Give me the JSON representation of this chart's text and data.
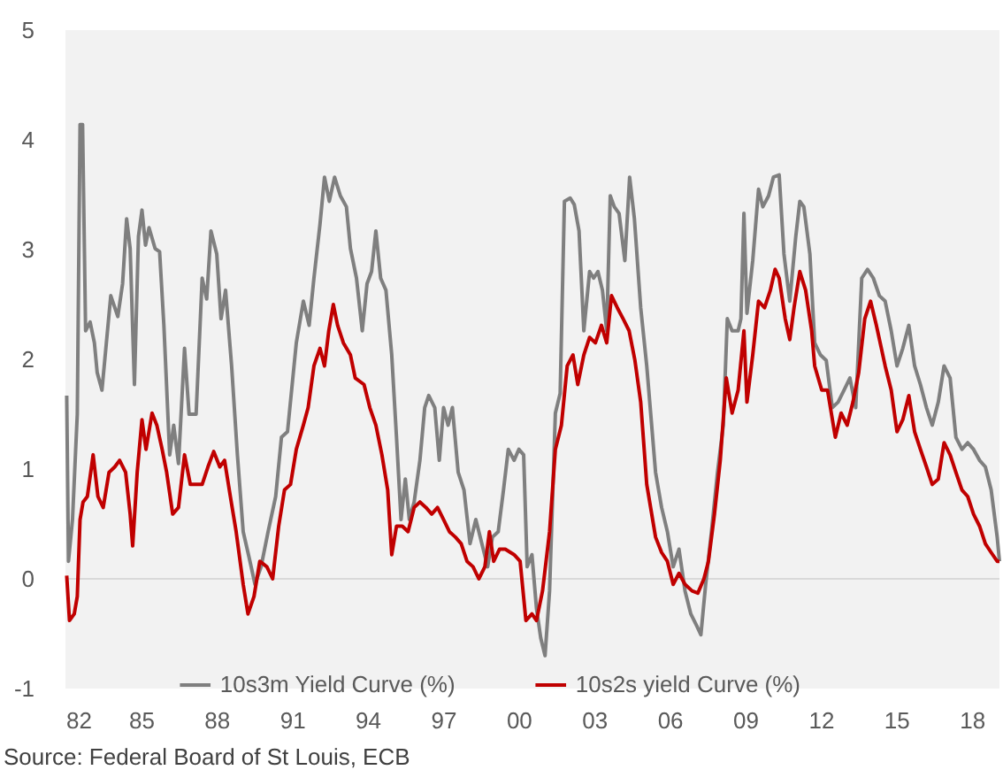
{
  "chart_data": {
    "type": "line",
    "xlim": [
      1982,
      2019.1
    ],
    "ylim": [
      -1,
      5
    ],
    "xticks": [
      {
        "value": 1982,
        "label": "82"
      },
      {
        "value": 1985,
        "label": "85"
      },
      {
        "value": 1988,
        "label": "88"
      },
      {
        "value": 1991,
        "label": "91"
      },
      {
        "value": 1994,
        "label": "94"
      },
      {
        "value": 1997,
        "label": "97"
      },
      {
        "value": 2000,
        "label": "00"
      },
      {
        "value": 2003,
        "label": "03"
      },
      {
        "value": 2006,
        "label": "06"
      },
      {
        "value": 2009,
        "label": "09"
      },
      {
        "value": 2012,
        "label": "12"
      },
      {
        "value": 2015,
        "label": "15"
      },
      {
        "value": 2018,
        "label": "18"
      }
    ],
    "yticks": [
      -1,
      0,
      1,
      2,
      3,
      4,
      5
    ],
    "grid": false,
    "legend": "bottom",
    "marker": "none",
    "line_style": "solid",
    "ref_lines": [
      {
        "axis": "y",
        "value": 0,
        "color": "#d9d9d9"
      }
    ],
    "annotations": [
      "Source: Federal Board of St Louis, ECB"
    ],
    "series": [
      {
        "name": "10s3m Yield Curve (%)",
        "color": "#7f7f7f",
        "x": [
          1982.05,
          1982.12,
          1982.28,
          1982.47,
          1982.58,
          1982.68,
          1982.8,
          1982.98,
          1983.15,
          1983.26,
          1983.45,
          1983.8,
          1984.08,
          1984.27,
          1984.43,
          1984.57,
          1984.74,
          1984.9,
          1985.04,
          1985.18,
          1985.32,
          1985.56,
          1985.74,
          1985.91,
          1986.14,
          1986.3,
          1986.49,
          1986.73,
          1986.91,
          1987.19,
          1987.43,
          1987.61,
          1987.78,
          1988.01,
          1988.18,
          1988.36,
          1988.6,
          1988.83,
          1989.06,
          1989.3,
          1989.53,
          1989.77,
          1990.05,
          1990.35,
          1990.58,
          1990.82,
          1991.17,
          1991.45,
          1991.68,
          1991.87,
          1992.11,
          1992.29,
          1992.48,
          1992.69,
          1992.92,
          1993.16,
          1993.32,
          1993.56,
          1993.79,
          1993.98,
          1994.16,
          1994.33,
          1994.52,
          1994.73,
          1994.96,
          1995.15,
          1995.33,
          1995.5,
          1995.66,
          1995.85,
          1996.08,
          1996.27,
          1996.43,
          1996.67,
          1996.85,
          1997.02,
          1997.2,
          1997.37,
          1997.6,
          1997.83,
          1998.07,
          1998.3,
          1998.54,
          1998.77,
          1998.96,
          1999.19,
          1999.4,
          1999.59,
          1999.82,
          2000.01,
          2000.2,
          2000.34,
          2000.53,
          2000.71,
          2000.88,
          2001.05,
          2001.23,
          2001.46,
          2001.65,
          2001.82,
          2002.05,
          2002.21,
          2002.4,
          2002.59,
          2002.82,
          2002.98,
          2003.15,
          2003.33,
          2003.5,
          2003.64,
          2003.8,
          2003.99,
          2004.22,
          2004.41,
          2004.6,
          2004.85,
          2005.09,
          2005.44,
          2005.68,
          2005.91,
          2006.14,
          2006.37,
          2006.61,
          2006.84,
          2007.08,
          2007.24,
          2007.43,
          2007.66,
          2007.9,
          2008.13,
          2008.29,
          2008.48,
          2008.72,
          2008.83,
          2008.95,
          2009.07,
          2009.3,
          2009.53,
          2009.7,
          2009.93,
          2010.12,
          2010.35,
          2010.54,
          2010.77,
          2011.01,
          2011.17,
          2011.33,
          2011.57,
          2011.76,
          2011.99,
          2012.22,
          2012.46,
          2012.69,
          2012.93,
          2013.16,
          2013.39,
          2013.63,
          2013.86,
          2014.09,
          2014.33,
          2014.56,
          2014.8,
          2015.03,
          2015.26,
          2015.5,
          2015.73,
          2015.96,
          2016.2,
          2016.43,
          2016.67,
          2016.9,
          2017.14,
          2017.37,
          2017.61,
          2017.84,
          2018.07,
          2018.31,
          2018.54,
          2018.77,
          2019.01,
          2019.1
        ],
        "values": [
          1.67,
          0.16,
          0.54,
          1.5,
          4.14,
          4.14,
          2.26,
          2.34,
          2.15,
          1.88,
          1.72,
          2.58,
          2.39,
          2.69,
          3.28,
          3.01,
          1.77,
          3.12,
          3.36,
          3.04,
          3.2,
          3.01,
          2.98,
          2.31,
          1.13,
          1.4,
          1.05,
          2.1,
          1.5,
          1.5,
          2.74,
          2.55,
          3.17,
          2.96,
          2.37,
          2.63,
          1.94,
          1.13,
          0.43,
          0.19,
          -0.05,
          0.11,
          0.43,
          0.75,
          1.29,
          1.34,
          2.15,
          2.53,
          2.31,
          2.74,
          3.23,
          3.66,
          3.44,
          3.66,
          3.49,
          3.39,
          3.01,
          2.74,
          2.26,
          2.69,
          2.8,
          3.17,
          2.74,
          2.63,
          2.04,
          1.29,
          0.54,
          0.91,
          0.54,
          0.7,
          1.08,
          1.56,
          1.67,
          1.56,
          1.08,
          1.56,
          1.4,
          1.56,
          0.97,
          0.81,
          0.32,
          0.54,
          0.32,
          0.11,
          0.38,
          0.43,
          0.81,
          1.18,
          1.08,
          1.18,
          1.13,
          0.11,
          0.22,
          -0.27,
          -0.54,
          -0.7,
          -0.11,
          1.51,
          1.69,
          3.44,
          3.47,
          3.41,
          3.17,
          2.26,
          2.8,
          2.74,
          2.8,
          2.63,
          2.26,
          3.49,
          3.39,
          3.33,
          2.9,
          3.66,
          3.28,
          2.47,
          1.94,
          0.97,
          0.65,
          0.43,
          0.11,
          0.27,
          -0.11,
          -0.32,
          -0.43,
          -0.51,
          -0.05,
          0.43,
          0.97,
          1.4,
          2.37,
          2.26,
          2.26,
          2.37,
          3.33,
          2.42,
          2.9,
          3.55,
          3.39,
          3.49,
          3.66,
          3.68,
          2.96,
          2.53,
          3.12,
          3.44,
          3.39,
          2.96,
          2.15,
          2.04,
          1.99,
          1.56,
          1.61,
          1.72,
          1.83,
          1.56,
          2.74,
          2.82,
          2.74,
          2.58,
          2.53,
          2.26,
          1.94,
          2.1,
          2.31,
          1.94,
          1.77,
          1.56,
          1.4,
          1.61,
          1.94,
          1.83,
          1.29,
          1.18,
          1.24,
          1.18,
          1.08,
          1.02,
          0.81,
          0.38,
          0.16
        ]
      },
      {
        "name": "10s2s yield Curve (%)",
        "color": "#c00000",
        "x": [
          1982.05,
          1982.16,
          1982.35,
          1982.47,
          1982.58,
          1982.7,
          1982.87,
          1983.1,
          1983.29,
          1983.5,
          1983.73,
          1983.96,
          1984.15,
          1984.39,
          1984.57,
          1984.67,
          1984.85,
          1985.04,
          1985.2,
          1985.44,
          1985.63,
          1985.84,
          1986.02,
          1986.26,
          1986.49,
          1986.73,
          1986.96,
          1987.19,
          1987.43,
          1987.66,
          1987.89,
          1988.13,
          1988.32,
          1988.55,
          1988.78,
          1989.06,
          1989.25,
          1989.49,
          1989.72,
          1990.0,
          1990.23,
          1990.47,
          1990.7,
          1990.94,
          1991.17,
          1991.45,
          1991.64,
          1991.87,
          1992.11,
          1992.29,
          1992.46,
          1992.64,
          1992.81,
          1993.04,
          1993.32,
          1993.51,
          1993.86,
          1994.09,
          1994.33,
          1994.57,
          1994.8,
          1994.96,
          1995.15,
          1995.38,
          1995.61,
          1995.85,
          1996.08,
          1996.32,
          1996.55,
          1996.78,
          1997.02,
          1997.25,
          1997.49,
          1997.72,
          1997.95,
          1998.19,
          1998.42,
          1998.66,
          1998.84,
          1999.01,
          1999.24,
          1999.47,
          1999.82,
          2000.06,
          2000.29,
          2000.53,
          2000.71,
          2000.95,
          2001.23,
          2001.46,
          2001.7,
          2001.93,
          2002.16,
          2002.35,
          2002.59,
          2002.82,
          2003.05,
          2003.29,
          2003.5,
          2003.69,
          2003.92,
          2004.15,
          2004.39,
          2004.62,
          2004.85,
          2005.09,
          2005.44,
          2005.68,
          2005.91,
          2006.14,
          2006.37,
          2006.61,
          2006.89,
          2007.12,
          2007.36,
          2007.54,
          2007.78,
          2008.01,
          2008.25,
          2008.48,
          2008.72,
          2008.95,
          2009.07,
          2009.3,
          2009.53,
          2009.77,
          2010.0,
          2010.19,
          2010.35,
          2010.59,
          2010.77,
          2010.94,
          2011.17,
          2011.4,
          2011.64,
          2011.76,
          2012.04,
          2012.27,
          2012.58,
          2012.81,
          2013.05,
          2013.28,
          2013.51,
          2013.75,
          2013.98,
          2014.21,
          2014.56,
          2014.8,
          2015.03,
          2015.26,
          2015.5,
          2015.73,
          2015.96,
          2016.2,
          2016.43,
          2016.67,
          2016.9,
          2017.14,
          2017.37,
          2017.61,
          2017.84,
          2018.07,
          2018.31,
          2018.54,
          2018.77,
          2019.01,
          2019.1
        ],
        "values": [
          0.03,
          -0.38,
          -0.32,
          -0.16,
          0.54,
          0.7,
          0.75,
          1.13,
          0.75,
          0.65,
          0.97,
          1.02,
          1.08,
          0.97,
          0.59,
          0.3,
          0.97,
          1.45,
          1.18,
          1.51,
          1.4,
          1.18,
          0.97,
          0.59,
          0.65,
          1.13,
          0.86,
          0.86,
          0.86,
          1.02,
          1.16,
          1.02,
          1.08,
          0.75,
          0.43,
          -0.05,
          -0.32,
          -0.16,
          0.16,
          0.11,
          0,
          0.48,
          0.81,
          0.86,
          1.18,
          1.4,
          1.56,
          1.94,
          2.1,
          1.94,
          2.26,
          2.5,
          2.31,
          2.15,
          2.04,
          1.83,
          1.77,
          1.56,
          1.4,
          1.13,
          0.81,
          0.22,
          0.48,
          0.48,
          0.43,
          0.65,
          0.7,
          0.65,
          0.59,
          0.65,
          0.54,
          0.43,
          0.38,
          0.32,
          0.16,
          0.11,
          0,
          0.11,
          0.43,
          0.16,
          0.27,
          0.27,
          0.22,
          0.16,
          -0.38,
          -0.32,
          -0.38,
          -0.11,
          0.43,
          1.18,
          1.4,
          1.94,
          2.04,
          1.77,
          2.04,
          2.2,
          2.15,
          2.31,
          2.15,
          2.58,
          2.47,
          2.37,
          2.26,
          1.99,
          1.61,
          0.86,
          0.38,
          0.24,
          0.16,
          -0.05,
          0.05,
          -0.05,
          -0.11,
          -0.13,
          0,
          0.16,
          0.59,
          1.08,
          1.83,
          1.51,
          1.72,
          2.26,
          1.61,
          2.04,
          2.53,
          2.47,
          2.63,
          2.82,
          2.74,
          2.37,
          2.18,
          2.47,
          2.8,
          2.63,
          2.26,
          1.94,
          1.72,
          1.72,
          1.29,
          1.51,
          1.4,
          1.61,
          1.88,
          2.37,
          2.53,
          2.31,
          1.94,
          1.72,
          1.34,
          1.45,
          1.67,
          1.34,
          1.18,
          1.02,
          0.86,
          0.91,
          1.24,
          1.13,
          0.97,
          0.81,
          0.75,
          0.59,
          0.48,
          0.32,
          0.24,
          0.16,
          0.16
        ]
      }
    ]
  }
}
